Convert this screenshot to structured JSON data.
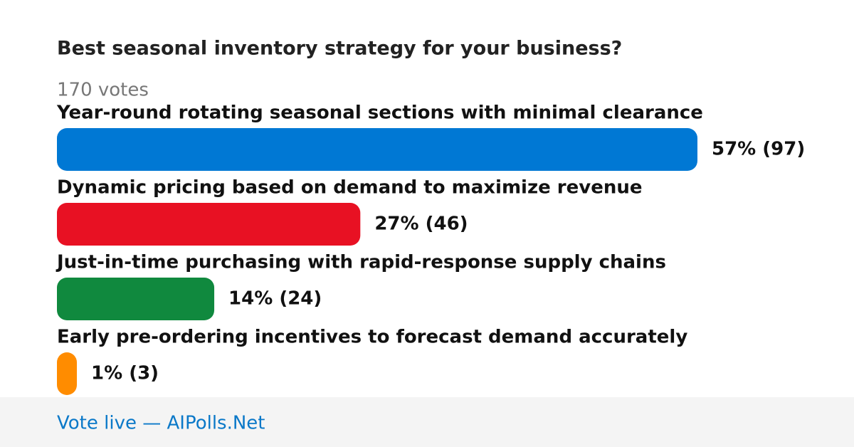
{
  "poll": {
    "title": "Best seasonal inventory strategy for your business?",
    "votes": "170 votes",
    "options": [
      {
        "label": "Year-round rotating seasonal sections with minimal clearance",
        "value": 57,
        "value_label": "57% (97)",
        "color": "#0078d4"
      },
      {
        "label": "Dynamic pricing based on demand to maximize revenue",
        "value": 27,
        "value_label": "27% (46)",
        "color": "#e81123"
      },
      {
        "label": "Just-in-time purchasing with rapid-response supply chains",
        "value": 14,
        "value_label": "14% (24)",
        "color": "#10893e"
      },
      {
        "label": "Early pre-ordering incentives to forecast demand accurately",
        "value": 1,
        "value_label": "1% (3)",
        "color": "#ff8c00"
      }
    ]
  },
  "footer": "Vote live — AIPolls.Net"
}
